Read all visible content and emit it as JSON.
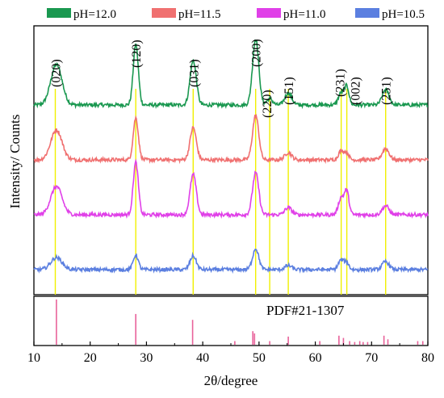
{
  "chart_data": {
    "type": "line",
    "xlabel": "2θ/degree",
    "ylabel": "Intensity/ Counts",
    "xlim": [
      10,
      80
    ],
    "x_ticks": [
      "10",
      "20",
      "30",
      "40",
      "50",
      "60",
      "70",
      "80"
    ],
    "grid": false,
    "legend_position": "top",
    "series": [
      {
        "name": "pH=12.0",
        "color": "#1a9850",
        "offset": 3,
        "baseline": 0.04,
        "peaks": [
          [
            14.0,
            0.5,
            1.0
          ],
          [
            28.1,
            0.75,
            0.45
          ],
          [
            38.3,
            0.55,
            0.55
          ],
          [
            49.4,
            0.82,
            0.55
          ],
          [
            51.9,
            0.08,
            0.5
          ],
          [
            55.2,
            0.15,
            0.6
          ],
          [
            64.6,
            0.15,
            0.5
          ],
          [
            65.6,
            0.22,
            0.4
          ],
          [
            72.5,
            0.19,
            0.6
          ]
        ]
      },
      {
        "name": "pH=11.5",
        "color": "#f07070",
        "offset": 2,
        "baseline": 0.04,
        "peaks": [
          [
            14.0,
            0.37,
            1.0
          ],
          [
            28.1,
            0.52,
            0.45
          ],
          [
            38.3,
            0.4,
            0.55
          ],
          [
            49.4,
            0.55,
            0.55
          ],
          [
            55.2,
            0.09,
            0.6
          ],
          [
            64.6,
            0.11,
            0.5
          ],
          [
            65.6,
            0.08,
            0.4
          ],
          [
            72.5,
            0.14,
            0.6
          ]
        ]
      },
      {
        "name": "pH=11.0",
        "color": "#e040e8",
        "offset": 1,
        "baseline": 0.04,
        "peaks": [
          [
            14.0,
            0.35,
            1.0
          ],
          [
            28.1,
            0.65,
            0.45
          ],
          [
            38.3,
            0.5,
            0.55
          ],
          [
            49.4,
            0.52,
            0.55
          ],
          [
            55.2,
            0.09,
            0.6
          ],
          [
            64.6,
            0.21,
            0.5
          ],
          [
            65.6,
            0.28,
            0.4
          ],
          [
            72.5,
            0.11,
            0.6
          ]
        ]
      },
      {
        "name": "pH=10.5",
        "color": "#5b7fe0",
        "offset": 0,
        "baseline": 0.04,
        "peaks": [
          [
            14.0,
            0.15,
            1.0
          ],
          [
            28.1,
            0.18,
            0.45
          ],
          [
            38.3,
            0.17,
            0.55
          ],
          [
            49.4,
            0.26,
            0.55
          ],
          [
            55.2,
            0.05,
            0.6
          ],
          [
            64.6,
            0.12,
            0.5
          ],
          [
            65.6,
            0.08,
            0.4
          ],
          [
            72.5,
            0.1,
            0.6
          ]
        ]
      }
    ],
    "peak_labels": [
      {
        "label": "(020)",
        "x": 13.8
      },
      {
        "label": "(120)",
        "x": 28.1
      },
      {
        "label": "(031)",
        "x": 38.3
      },
      {
        "label": "(200)",
        "x": 49.4
      },
      {
        "label": "(220)",
        "x": 51.9
      },
      {
        "label": "(151)",
        "x": 55.2
      },
      {
        "label": "(231)",
        "x": 64.6
      },
      {
        "label": "(002)",
        "x": 65.6
      },
      {
        "label": "(251)",
        "x": 72.5
      }
    ],
    "reference": {
      "label": "PDF#21-1307",
      "color": "#e8629a",
      "lines": [
        {
          "x": 14.0,
          "intensity": 100
        },
        {
          "x": 28.1,
          "intensity": 68
        },
        {
          "x": 38.2,
          "intensity": 55
        },
        {
          "x": 45.7,
          "intensity": 8
        },
        {
          "x": 48.9,
          "intensity": 30
        },
        {
          "x": 49.2,
          "intensity": 25
        },
        {
          "x": 51.9,
          "intensity": 8
        },
        {
          "x": 55.2,
          "intensity": 18
        },
        {
          "x": 60.8,
          "intensity": 8
        },
        {
          "x": 64.2,
          "intensity": 20
        },
        {
          "x": 65.0,
          "intensity": 15
        },
        {
          "x": 66.1,
          "intensity": 8
        },
        {
          "x": 67.0,
          "intensity": 6
        },
        {
          "x": 67.9,
          "intensity": 8
        },
        {
          "x": 68.5,
          "intensity": 6
        },
        {
          "x": 69.3,
          "intensity": 6
        },
        {
          "x": 72.2,
          "intensity": 20
        },
        {
          "x": 72.9,
          "intensity": 12
        },
        {
          "x": 78.2,
          "intensity": 8
        },
        {
          "x": 79.1,
          "intensity": 8
        }
      ]
    }
  }
}
